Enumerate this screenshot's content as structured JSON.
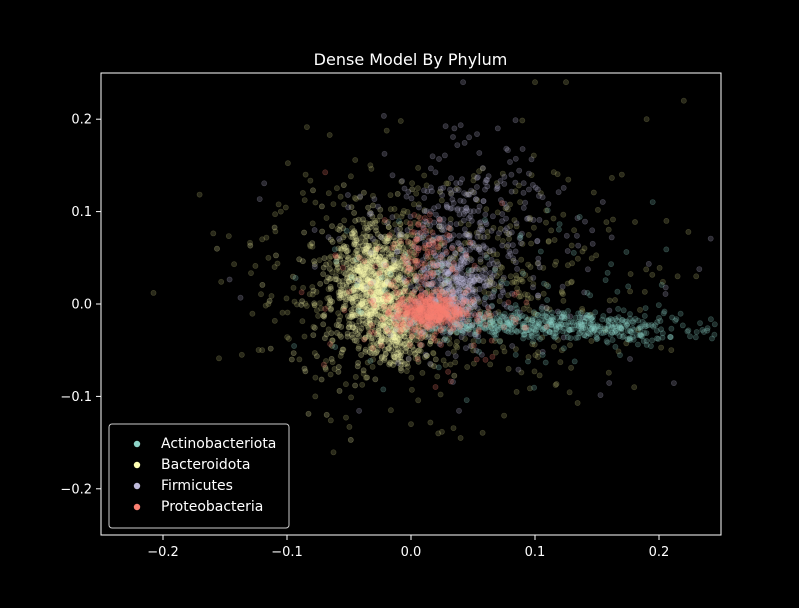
{
  "chart_data": {
    "type": "scatter",
    "title": "Dense Model By Phylum",
    "xlabel": "",
    "ylabel": "",
    "xlim": [
      -0.25,
      0.25
    ],
    "ylim": [
      -0.25,
      0.25
    ],
    "xticks": [
      -0.2,
      -0.1,
      0.0,
      0.1,
      0.2
    ],
    "yticks": [
      -0.2,
      -0.1,
      0.0,
      0.1,
      0.2
    ],
    "xtick_labels": [
      "−0.2",
      "−0.1",
      "0.0",
      "0.1",
      "0.2"
    ],
    "ytick_labels": [
      "−0.2",
      "−0.1",
      "0.0",
      "0.1",
      "0.2"
    ],
    "grid": false,
    "legend_position": "lower-left",
    "background": "#000000",
    "foreground": "#ffffff",
    "series": [
      {
        "name": "Actinobacteriota",
        "color": "#8dd3c7",
        "clusters": [
          {
            "cx": 0.09,
            "cy": -0.022,
            "sx": 0.04,
            "sy": 0.007,
            "n": 340
          },
          {
            "cx": 0.175,
            "cy": -0.027,
            "sx": 0.035,
            "sy": 0.008,
            "n": 150
          },
          {
            "cx": 0.08,
            "cy": 0.0,
            "sx": 0.08,
            "sy": 0.05,
            "n": 90
          }
        ],
        "points": [
          [
            0.235,
            -0.028
          ],
          [
            0.245,
            -0.022
          ],
          [
            0.225,
            -0.035
          ],
          [
            0.19,
            -0.04
          ],
          [
            0.2,
            -0.015
          ],
          [
            0.15,
            -0.032
          ]
        ]
      },
      {
        "name": "Bacteroidota",
        "color": "#ffffb3",
        "clusters": [
          {
            "cx": -0.03,
            "cy": 0.02,
            "sx": 0.016,
            "sy": 0.03,
            "n": 800
          },
          {
            "cx": -0.01,
            "cy": -0.03,
            "sx": 0.012,
            "sy": 0.018,
            "n": 200
          },
          {
            "cx": -0.035,
            "cy": 0.0,
            "sx": 0.04,
            "sy": 0.05,
            "n": 150
          }
        ],
        "points": [
          [
            -0.045,
            0.09
          ],
          [
            -0.06,
            0.05
          ],
          [
            -0.005,
            -0.065
          ],
          [
            0.02,
            -0.06
          ]
        ]
      },
      {
        "name": "Firmicutes",
        "color": "#bebada",
        "clusters": [
          {
            "cx": 0.035,
            "cy": 0.015,
            "sx": 0.015,
            "sy": 0.025,
            "n": 400
          },
          {
            "cx": 0.04,
            "cy": 0.09,
            "sx": 0.03,
            "sy": 0.04,
            "n": 200
          },
          {
            "cx": 0.05,
            "cy": 0.05,
            "sx": 0.07,
            "sy": 0.06,
            "n": 180
          }
        ],
        "points": [
          [
            0.042,
            0.24
          ],
          [
            0.07,
            0.19
          ],
          [
            0.035,
            0.19
          ]
        ]
      },
      {
        "name": "Proteobacteria",
        "color": "#fb8072",
        "clusters": [
          {
            "cx": 0.015,
            "cy": -0.008,
            "sx": 0.014,
            "sy": 0.01,
            "n": 500
          },
          {
            "cx": 0.008,
            "cy": 0.06,
            "sx": 0.012,
            "sy": 0.02,
            "n": 80
          },
          {
            "cx": 0.01,
            "cy": 0.0,
            "sx": 0.04,
            "sy": 0.04,
            "n": 120
          }
        ],
        "points": []
      },
      {
        "name": "",
        "color": "#bbbb77",
        "clusters": [
          {
            "cx": 0.02,
            "cy": 0.02,
            "sx": 0.07,
            "sy": 0.06,
            "n": 650
          }
        ],
        "points": [
          [
            -0.12,
            0.07
          ],
          [
            -0.115,
            0.05
          ],
          [
            -0.11,
            0.04
          ],
          [
            -0.105,
            0.1
          ],
          [
            -0.085,
            0.14
          ],
          [
            -0.12,
            -0.05
          ],
          [
            -0.09,
            -0.06
          ],
          [
            0.1,
            0.24
          ],
          [
            0.125,
            0.24
          ],
          [
            0.22,
            0.22
          ],
          [
            0.19,
            0.2
          ],
          [
            0.04,
            -0.145
          ],
          [
            0.022,
            -0.14
          ],
          [
            0.0,
            -0.13
          ],
          [
            -0.115,
            0.0
          ],
          [
            0.17,
            0.14
          ],
          [
            0.215,
            0.03
          ],
          [
            0.23,
            0.03
          ],
          [
            0.18,
            -0.09
          ]
        ]
      }
    ]
  }
}
